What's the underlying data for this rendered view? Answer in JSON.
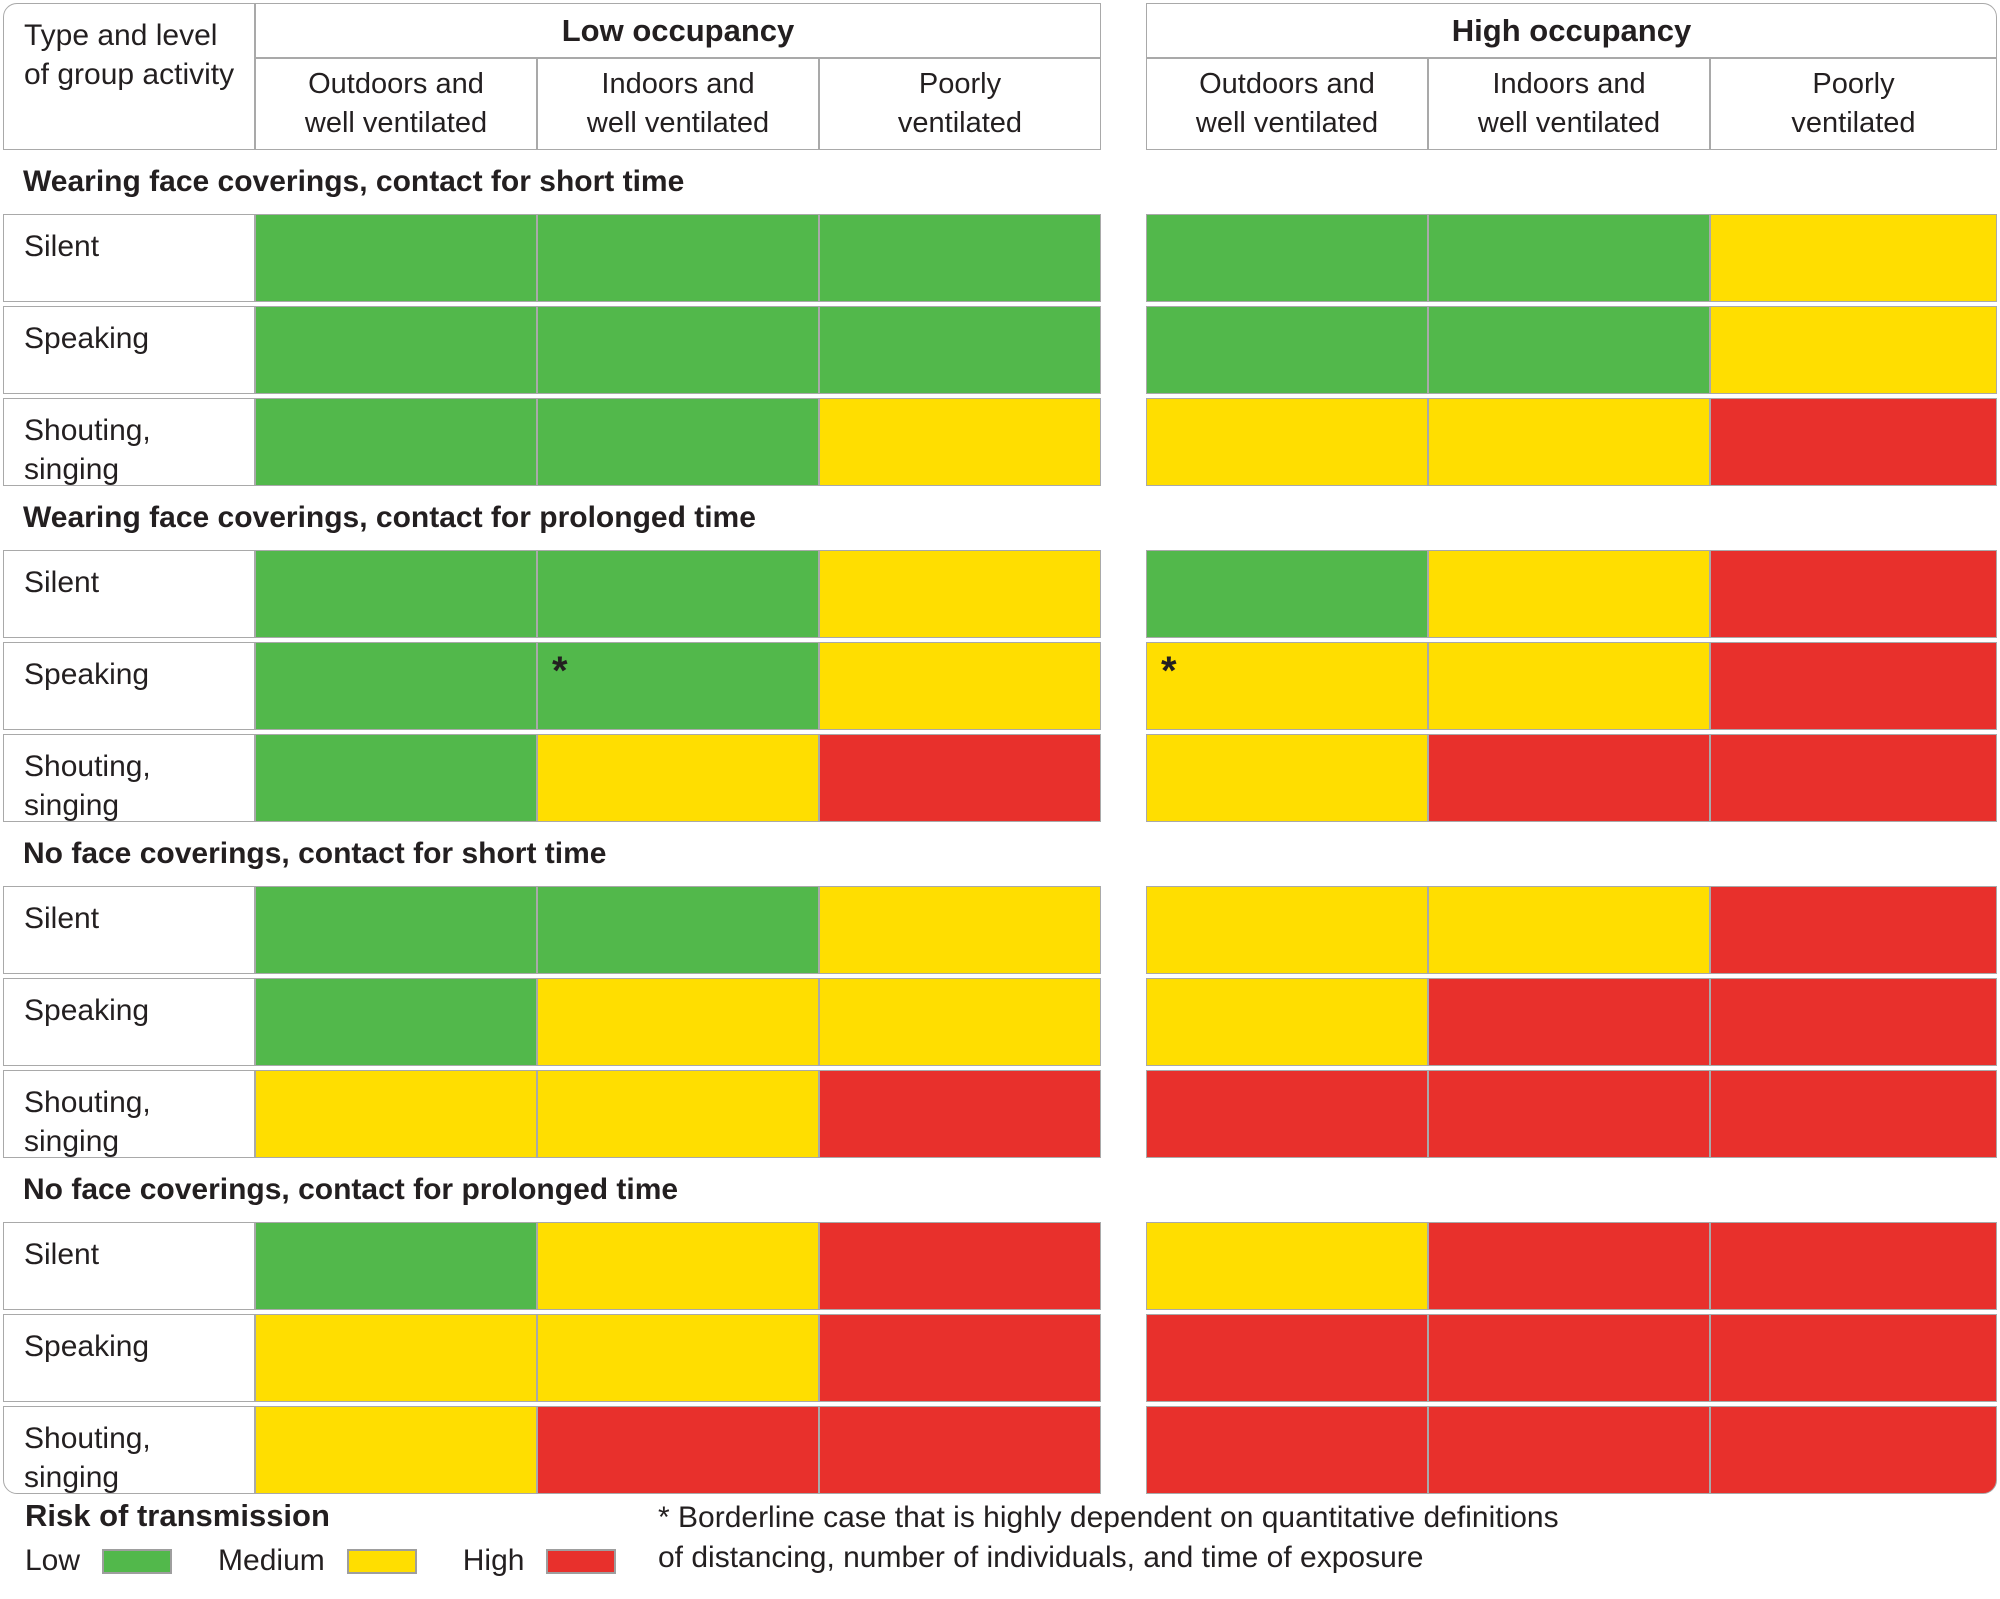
{
  "chart_data": {
    "type": "heatmap",
    "corner_header": "Type and level\nof group activity",
    "column_groups": [
      {
        "label": "Low occupancy",
        "columns": [
          "Outdoors and\nwell ventilated",
          "Indoors and\nwell ventilated",
          "Poorly\nventilated"
        ]
      },
      {
        "label": "High occupancy",
        "columns": [
          "Outdoors and\nwell ventilated",
          "Indoors and\nwell ventilated",
          "Poorly\nventilated"
        ]
      }
    ],
    "risk_levels": {
      "low": {
        "label": "Low",
        "color": "#52b84b"
      },
      "medium": {
        "label": "Medium",
        "color": "#ffde00"
      },
      "high": {
        "label": "High",
        "color": "#e8302c"
      }
    },
    "sections": [
      {
        "title": "Wearing face coverings, contact for short time",
        "rows": [
          {
            "label": "Silent",
            "low": [
              "low",
              "low",
              "low"
            ],
            "high": [
              "low",
              "low",
              "medium"
            ]
          },
          {
            "label": "Speaking",
            "low": [
              "low",
              "low",
              "low"
            ],
            "high": [
              "low",
              "low",
              "medium"
            ]
          },
          {
            "label": "Shouting,\nsinging",
            "low": [
              "low",
              "low",
              "medium"
            ],
            "high": [
              "medium",
              "medium",
              "high"
            ]
          }
        ]
      },
      {
        "title": "Wearing face coverings, contact for prolonged time",
        "rows": [
          {
            "label": "Silent",
            "low": [
              "low",
              "low",
              "medium"
            ],
            "high": [
              "low",
              "medium",
              "high"
            ]
          },
          {
            "label": "Speaking",
            "low": [
              "low",
              "low*",
              "medium"
            ],
            "high": [
              "medium*",
              "medium",
              "high"
            ]
          },
          {
            "label": "Shouting,\nsinging",
            "low": [
              "low",
              "medium",
              "high"
            ],
            "high": [
              "medium",
              "high",
              "high"
            ]
          }
        ]
      },
      {
        "title": "No face coverings, contact for short time",
        "rows": [
          {
            "label": "Silent",
            "low": [
              "low",
              "low",
              "medium"
            ],
            "high": [
              "medium",
              "medium",
              "high"
            ]
          },
          {
            "label": "Speaking",
            "low": [
              "low",
              "medium",
              "medium"
            ],
            "high": [
              "medium",
              "high",
              "high"
            ]
          },
          {
            "label": "Shouting,\nsinging",
            "low": [
              "medium",
              "medium",
              "high"
            ],
            "high": [
              "high",
              "high",
              "high"
            ]
          }
        ]
      },
      {
        "title": "No face coverings, contact for prolonged time",
        "rows": [
          {
            "label": "Silent",
            "low": [
              "low",
              "medium",
              "high"
            ],
            "high": [
              "medium",
              "high",
              "high"
            ]
          },
          {
            "label": "Speaking",
            "low": [
              "medium",
              "medium",
              "high"
            ],
            "high": [
              "high",
              "high",
              "high"
            ]
          },
          {
            "label": "Shouting,\nsinging",
            "low": [
              "medium",
              "high",
              "high"
            ],
            "high": [
              "high",
              "high",
              "high"
            ]
          }
        ]
      }
    ],
    "legend": {
      "title": "Risk of transmission",
      "position": "bottom-left"
    },
    "footnote": "* Borderline case that is highly dependent on quantitative definitions\nof distancing, number of individuals, and time of exposure",
    "asterisk_note_marker": "*"
  }
}
